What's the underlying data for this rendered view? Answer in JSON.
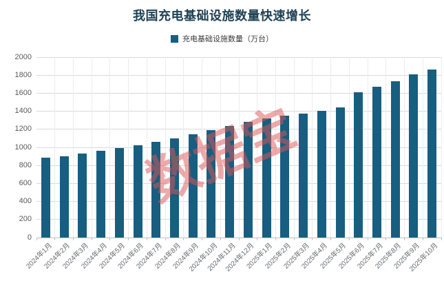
{
  "title": "我国充电基础设施数量快速增长",
  "legend": {
    "label": "充电基础设施数量（万台）"
  },
  "watermark": "数据宝",
  "colors": {
    "bar": "#175E80",
    "title": "#1F4254",
    "watermark": "rgba(222,85,85,0.5)",
    "gridline": "#d9d9d9",
    "axis": "#bfbfbf"
  },
  "chart_data": {
    "type": "bar",
    "title": "我国充电基础设施数量快速增长",
    "legend_entries": [
      "充电基础设施数量（万台）"
    ],
    "legend_position": "top",
    "xlabel": "",
    "ylabel": "",
    "ylim": [
      0,
      2000
    ],
    "y_ticks": [
      0,
      200,
      400,
      600,
      800,
      1000,
      1200,
      1400,
      1600,
      1800,
      2000
    ],
    "grid": true,
    "categories": [
      "2024年1月",
      "2024年2月",
      "2024年3月",
      "2024年4月",
      "2024年5月",
      "2024年6月",
      "2024年7月",
      "2024年8月",
      "2024年9月",
      "2024年10月",
      "2024年11月",
      "2024年12月",
      "2025年1月",
      "2025年2月",
      "2025年3月",
      "2025年4月",
      "2025年5月",
      "2025年6月",
      "2025年7月",
      "2025年8月",
      "2025年9月",
      "2025年10月"
    ],
    "values": [
      886,
      902,
      931,
      961,
      992,
      1024,
      1060,
      1099,
      1143,
      1188,
      1235,
      1282,
      1320,
      1352,
      1375,
      1408,
      1440,
      1610,
      1670,
      1735,
      1806,
      1866
    ]
  }
}
